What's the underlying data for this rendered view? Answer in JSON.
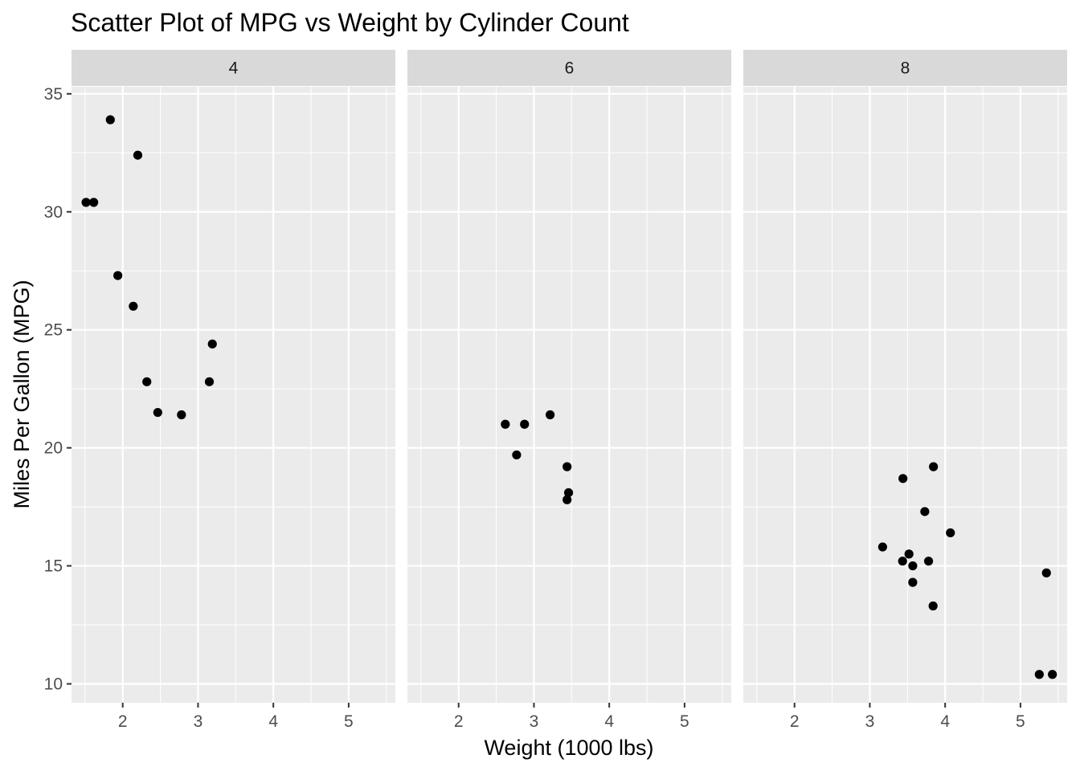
{
  "chart_data": {
    "type": "scatter",
    "title": "Scatter Plot of MPG vs Weight by Cylinder Count",
    "xlabel": "Weight (1000 lbs)",
    "ylabel": "Miles Per Gallon (MPG)",
    "xlim": [
      1.32,
      5.62
    ],
    "ylim": [
      9.2,
      35.3
    ],
    "x_ticks": [
      2,
      3,
      4,
      5
    ],
    "x_tick_labels": [
      "2",
      "3",
      "4",
      "5"
    ],
    "y_ticks": [
      10,
      15,
      20,
      25,
      30,
      35
    ],
    "y_tick_labels": [
      "10",
      "15",
      "20",
      "25",
      "30",
      "35"
    ],
    "grid": true,
    "legend": "none",
    "colors": {
      "panel_bg": "#ebebeb",
      "strip_bg": "#d9d9d9",
      "grid_major": "#ffffff",
      "point": "#000000",
      "tick_text": "#4d4d4d"
    },
    "facets": [
      {
        "label": "4",
        "points": [
          {
            "x": 1.513,
            "y": 30.4
          },
          {
            "x": 1.615,
            "y": 30.4
          },
          {
            "x": 1.835,
            "y": 33.9
          },
          {
            "x": 1.935,
            "y": 27.3
          },
          {
            "x": 2.14,
            "y": 26.0
          },
          {
            "x": 2.2,
            "y": 32.4
          },
          {
            "x": 2.32,
            "y": 22.8
          },
          {
            "x": 2.465,
            "y": 21.5
          },
          {
            "x": 2.78,
            "y": 21.4
          },
          {
            "x": 3.15,
            "y": 22.8
          },
          {
            "x": 3.19,
            "y": 24.4
          }
        ]
      },
      {
        "label": "6",
        "points": [
          {
            "x": 2.62,
            "y": 21.0
          },
          {
            "x": 2.77,
            "y": 19.7
          },
          {
            "x": 2.875,
            "y": 21.0
          },
          {
            "x": 3.215,
            "y": 21.4
          },
          {
            "x": 3.44,
            "y": 19.2
          },
          {
            "x": 3.44,
            "y": 17.8
          },
          {
            "x": 3.46,
            "y": 18.1
          }
        ]
      },
      {
        "label": "8",
        "points": [
          {
            "x": 3.17,
            "y": 15.8
          },
          {
            "x": 3.435,
            "y": 15.2
          },
          {
            "x": 3.44,
            "y": 18.7
          },
          {
            "x": 3.52,
            "y": 15.5
          },
          {
            "x": 3.57,
            "y": 14.3
          },
          {
            "x": 3.57,
            "y": 15.0
          },
          {
            "x": 3.73,
            "y": 17.3
          },
          {
            "x": 3.78,
            "y": 15.2
          },
          {
            "x": 3.84,
            "y": 13.3
          },
          {
            "x": 3.845,
            "y": 19.2
          },
          {
            "x": 4.07,
            "y": 16.4
          },
          {
            "x": 5.25,
            "y": 10.4
          },
          {
            "x": 5.345,
            "y": 14.7
          },
          {
            "x": 5.424,
            "y": 10.4
          }
        ]
      }
    ]
  }
}
